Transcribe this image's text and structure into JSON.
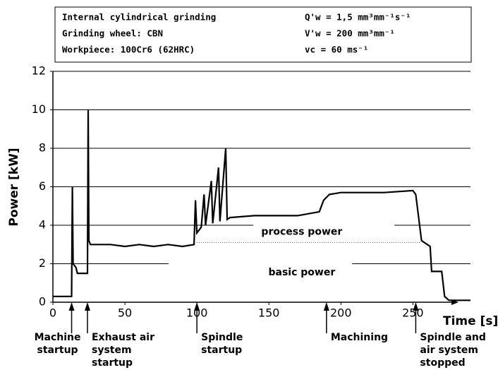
{
  "chart_data": {
    "type": "line",
    "info_box": [
      [
        "Internal cylindrical grinding",
        "Q'w = 1,5 mm³mm⁻¹s⁻¹"
      ],
      [
        "Grinding wheel: CBN",
        "V'w = 200 mm³mm⁻¹"
      ],
      [
        "Workpiece: 100Cr6 (62HRC)",
        "vc = 60 ms⁻¹"
      ]
    ],
    "ylabel": "Power [kW]",
    "xlabel": "Time [s]",
    "xlim": [
      0,
      290
    ],
    "xticks": [
      0,
      50,
      100,
      150,
      200,
      250
    ],
    "ylim": [
      0,
      12
    ],
    "yticks": [
      0,
      2,
      4,
      6,
      8,
      10,
      12
    ],
    "grid": true,
    "color": "#000000",
    "x": [
      0,
      13,
      13.5,
      14,
      16,
      17,
      24,
      24.5,
      25,
      26,
      40,
      50,
      60,
      70,
      80,
      90,
      98,
      99,
      100,
      103,
      105,
      106,
      110,
      111,
      115,
      116,
      120,
      121,
      123,
      140,
      170,
      185,
      188,
      192,
      200,
      230,
      250,
      252,
      256,
      260,
      262,
      263,
      270,
      272,
      275,
      290
    ],
    "values": [
      0.3,
      0.3,
      6,
      2,
      1.8,
      1.5,
      1.5,
      10,
      3.2,
      3.0,
      3.0,
      2.9,
      3.0,
      2.9,
      3.0,
      2.9,
      3.0,
      5.3,
      3.6,
      3.9,
      5.6,
      4.0,
      6.3,
      4.1,
      7.0,
      4.2,
      8.0,
      4.3,
      4.4,
      4.5,
      4.5,
      4.7,
      5.3,
      5.6,
      5.7,
      5.7,
      5.8,
      5.6,
      3.2,
      3.0,
      2.9,
      1.6,
      1.6,
      0.3,
      0.1,
      0.1
    ],
    "reference_line": {
      "y": 3.1,
      "x": [
        100,
        255
      ]
    },
    "region_labels": [
      "process power",
      "basic power"
    ],
    "annotations": [
      {
        "x": 13,
        "lines": [
          "Machine",
          "startup"
        ]
      },
      {
        "x": 24,
        "lines": [
          "Exhaust air",
          "system",
          "startup"
        ]
      },
      {
        "x": 100,
        "lines": [
          "Spindle",
          "startup"
        ]
      },
      {
        "x": 190,
        "lines": [
          "Machining"
        ]
      },
      {
        "x": 252,
        "lines": [
          "Spindle and",
          "air system",
          "stopped"
        ]
      }
    ]
  }
}
